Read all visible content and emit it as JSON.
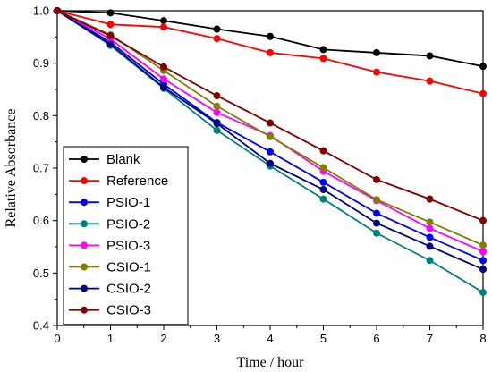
{
  "chart_data": {
    "type": "line",
    "title": "",
    "xlabel": "Time / hour",
    "ylabel": "Relative Absorbance",
    "xlim": [
      0,
      8
    ],
    "ylim": [
      0.4,
      1.0
    ],
    "x_ticks": [
      "0",
      "1",
      "2",
      "3",
      "4",
      "5",
      "6",
      "7",
      "8"
    ],
    "y_ticks": [
      "0.4",
      "0.5",
      "0.6",
      "0.7",
      "0.8",
      "0.9",
      "1.0"
    ],
    "grid": false,
    "legend_position": "lower-left",
    "x": [
      0,
      1,
      2,
      3,
      4,
      5,
      6,
      7,
      8
    ],
    "series": [
      {
        "name": "Blank",
        "color": "#000000",
        "values": [
          1.0,
          0.996,
          0.981,
          0.965,
          0.951,
          0.926,
          0.92,
          0.914,
          0.894
        ]
      },
      {
        "name": "Reference",
        "color": "#ff0000",
        "values": [
          1.0,
          0.974,
          0.969,
          0.947,
          0.92,
          0.909,
          0.883,
          0.866,
          0.842
        ]
      },
      {
        "name": "PSIO-1",
        "color": "#0000ff",
        "values": [
          1.0,
          0.94,
          0.86,
          0.787,
          0.731,
          0.673,
          0.614,
          0.568,
          0.524
        ]
      },
      {
        "name": "PSIO-2",
        "color": "#008080",
        "values": [
          1.0,
          0.934,
          0.852,
          0.772,
          0.704,
          0.641,
          0.576,
          0.524,
          0.463
        ]
      },
      {
        "name": "PSIO-3",
        "color": "#ff00ff",
        "values": [
          1.0,
          0.946,
          0.87,
          0.806,
          0.762,
          0.694,
          0.638,
          0.585,
          0.541
        ]
      },
      {
        "name": "CSIO-1",
        "color": "#808000",
        "values": [
          1.0,
          0.954,
          0.886,
          0.818,
          0.76,
          0.701,
          0.64,
          0.597,
          0.553
        ]
      },
      {
        "name": "CSIO-2",
        "color": "#000080",
        "values": [
          1.0,
          0.936,
          0.854,
          0.785,
          0.709,
          0.659,
          0.595,
          0.551,
          0.507
        ]
      },
      {
        "name": "CSIO-3",
        "color": "#800000",
        "values": [
          1.0,
          0.952,
          0.893,
          0.838,
          0.786,
          0.733,
          0.678,
          0.641,
          0.6
        ]
      }
    ]
  }
}
